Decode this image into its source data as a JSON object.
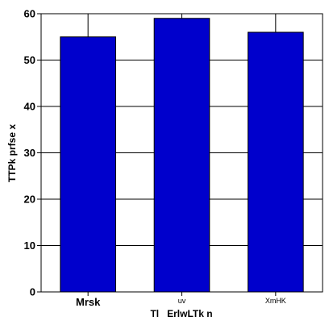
{
  "chart_data": {
    "type": "bar",
    "categories": [
      "Mrsk",
      "uv",
      "XmHK"
    ],
    "values": [
      55,
      59,
      56
    ],
    "xlabel": "Tl   ErlwLTk n",
    "ylabel": "TTPk prfse x",
    "ylim": [
      0,
      60
    ],
    "yticks": [
      0,
      10,
      20,
      30,
      40,
      50,
      60
    ],
    "grid": true,
    "bar_color": "#0000cc"
  }
}
